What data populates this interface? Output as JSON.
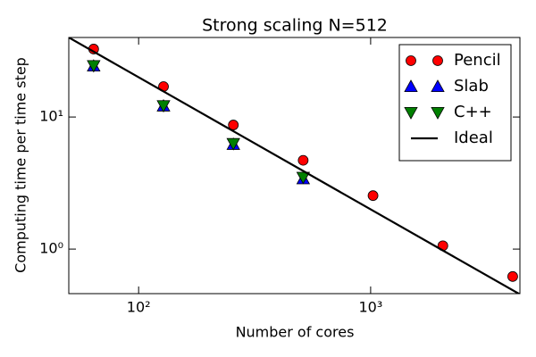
{
  "chart_data": {
    "type": "scatter",
    "title": "Strong scaling N=512",
    "xlabel": "Number of cores",
    "ylabel": "Computing time per time step",
    "xscale": "log",
    "yscale": "log",
    "xlim": [
      50,
      4400
    ],
    "ylim": [
      0.46,
      40
    ],
    "xticks": [
      {
        "value": 100,
        "label": "10²"
      },
      {
        "value": 1000,
        "label": "10³"
      }
    ],
    "yticks": [
      {
        "value": 1,
        "label": "10⁰"
      },
      {
        "value": 10,
        "label": "10¹"
      }
    ],
    "legend": "upper right",
    "series": [
      {
        "name": "Pencil",
        "color": "#ff0000",
        "marker": "circle",
        "x": [
          64,
          128,
          256,
          512,
          1024,
          2048,
          4096
        ],
        "values": [
          32.7,
          17,
          8.7,
          4.7,
          2.54,
          1.06,
          0.62
        ]
      },
      {
        "name": "Slab",
        "color": "#0000ff",
        "marker": "triangle-up",
        "x": [
          64,
          128,
          256,
          512
        ],
        "values": [
          24.3,
          12.1,
          6.2,
          3.4
        ]
      },
      {
        "name": "C++",
        "color": "#008000",
        "marker": "triangle-down",
        "x": [
          64,
          128,
          256,
          512
        ],
        "values": [
          24.5,
          12.2,
          6.3,
          3.5
        ]
      },
      {
        "name": "Ideal",
        "color": "#000000",
        "marker": "line",
        "x": [
          50,
          4400
        ],
        "values": [
          40,
          0.4545
        ]
      }
    ]
  }
}
